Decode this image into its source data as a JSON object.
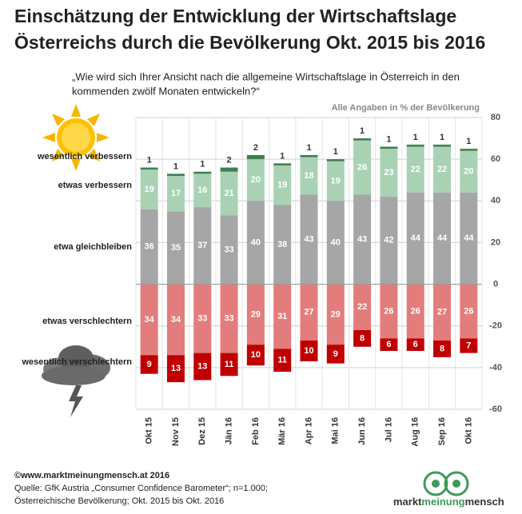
{
  "chart_data": {
    "type": "bar",
    "stacked": true,
    "title": [
      "Einschätzung der Entwicklung der Wirtschaftslage",
      "Österreichs durch die Bevölkerung Okt. 2015 bis 2016"
    ],
    "subtitle": [
      "„Wie wird sich Ihrer Ansicht nach die allgemeine Wirtschaftslage in Österreich in den",
      "kommenden  zwölf Monaten entwickeln?“"
    ],
    "note": "Alle Angaben  in % der Bevölkerung",
    "categories": [
      "Okt 15",
      "Nov 15",
      "Dez 15",
      "Jän 16",
      "Feb 16",
      "Mär 16",
      "Apr 16",
      "Mai 16",
      "Jun 16",
      "Jul 16",
      "Aug 16",
      "Sep 16",
      "Okt 16"
    ],
    "series": [
      {
        "name": "etwa gleichbleiben",
        "color": "#a6a6a6",
        "values": [
          36,
          35,
          37,
          33,
          40,
          38,
          43,
          40,
          43,
          42,
          44,
          44,
          44
        ]
      },
      {
        "name": "etwas verbessern",
        "color": "#a9d2b5",
        "values": [
          19,
          17,
          16,
          21,
          20,
          19,
          18,
          19,
          26,
          23,
          22,
          22,
          20
        ]
      },
      {
        "name": "wesentlich verbessern",
        "color": "#3f7f50",
        "values": [
          1,
          1,
          1,
          2,
          2,
          1,
          1,
          1,
          1,
          1,
          1,
          1,
          1
        ]
      },
      {
        "name": "etwas verschlechtern",
        "color": "#e37c7c",
        "values": [
          -34,
          -34,
          -33,
          -33,
          -29,
          -31,
          -27,
          -29,
          -22,
          -26,
          -26,
          -27,
          -26
        ],
        "value_labels": [
          "34",
          "34",
          "33",
          "33",
          "29",
          "31",
          "27",
          "29",
          "22",
          "26",
          "26",
          "27",
          "26"
        ]
      },
      {
        "name": "wesentlich verschlechtern",
        "color": "#c00000",
        "values": [
          -9,
          -13,
          -13,
          -11,
          -10,
          -11,
          -10,
          -9,
          -8,
          -6,
          -6,
          -8,
          -7
        ],
        "value_labels": [
          "9",
          "13",
          "13",
          "11",
          "10",
          "11",
          "10",
          "9",
          "8",
          "6",
          "6",
          "8",
          "7"
        ]
      }
    ],
    "ylim": [
      -60,
      80
    ],
    "yticks": [
      -60,
      -40,
      -20,
      0,
      20,
      40,
      60,
      80
    ],
    "grid": true
  },
  "footer": [
    "©www.marktmeinungmensch.at  2016",
    "Quelle: GfK Austria „Consumer Confidence Barometer“; n=1.000;",
    "Österreichische Bevölkerung; Okt. 2015 bis Okt. 2016"
  ],
  "logo": [
    "markt",
    "meinung",
    "mensch"
  ]
}
